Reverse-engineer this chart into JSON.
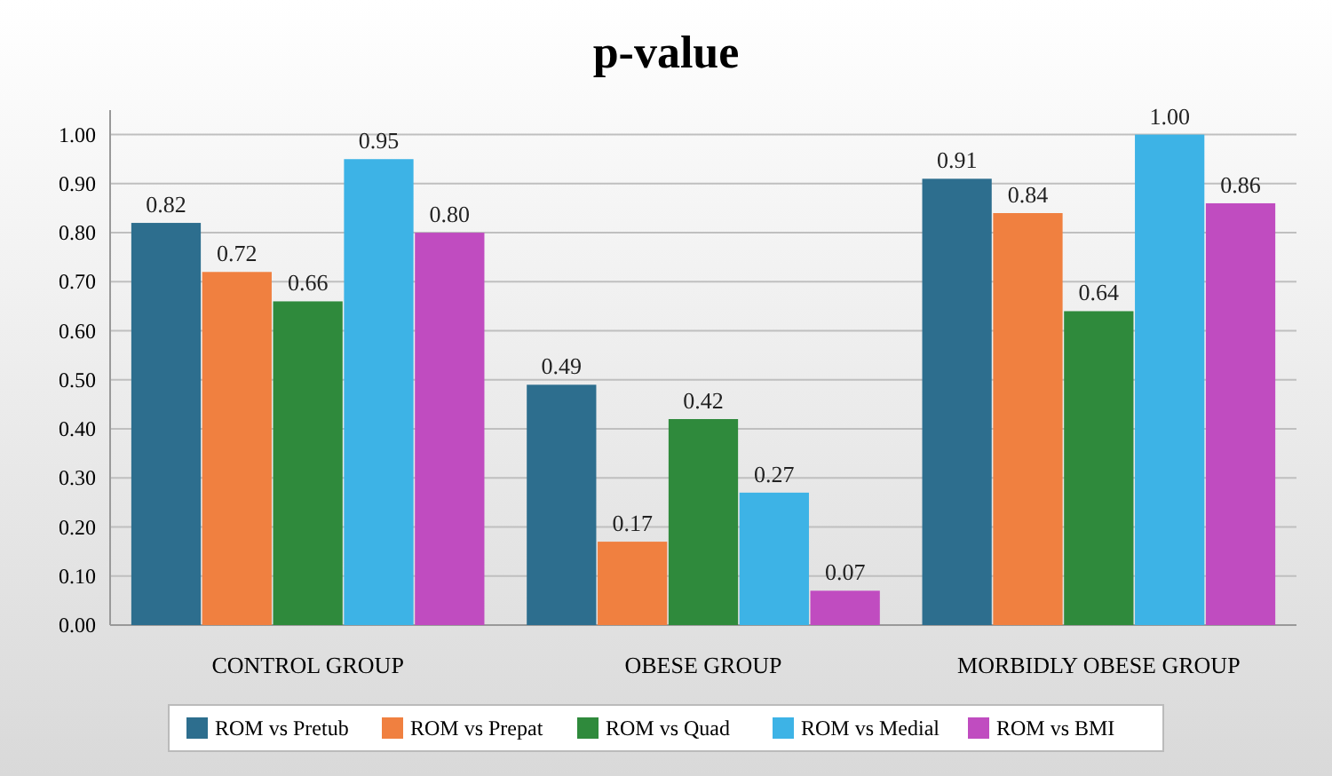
{
  "chart_data": {
    "type": "bar",
    "title": "p-value",
    "categories": [
      "CONTROL GROUP",
      "OBESE GROUP",
      "MORBIDLY OBESE GROUP"
    ],
    "series": [
      {
        "name": "ROM vs Pretub",
        "color": "#2d6e8e",
        "values": [
          0.82,
          0.49,
          0.91
        ],
        "value_labels": [
          "0.82",
          "0.49",
          "0.91"
        ]
      },
      {
        "name": "ROM vs Prepat",
        "color": "#f08040",
        "values": [
          0.72,
          0.17,
          0.84
        ],
        "value_labels": [
          "0.72",
          "0.17",
          "0.84"
        ]
      },
      {
        "name": "ROM vs Quad",
        "color": "#2f8a3c",
        "values": [
          0.66,
          0.42,
          0.64
        ],
        "value_labels": [
          "0.66",
          "0.42",
          "0.64"
        ]
      },
      {
        "name": "ROM vs Medial",
        "color": "#3db3e6",
        "values": [
          0.95,
          0.27,
          1.0
        ],
        "value_labels": [
          "0.95",
          "0.27",
          "1.00"
        ]
      },
      {
        "name": "ROM vs BMI",
        "color": "#c04cc0",
        "values": [
          0.8,
          0.07,
          0.86
        ],
        "value_labels": [
          "0.80",
          "0.07",
          "0.86"
        ]
      }
    ],
    "ylim": [
      0,
      1.05
    ],
    "yticks": [
      {
        "value": 0,
        "label": "0.00"
      },
      {
        "value": 0.1,
        "label": "0.10"
      },
      {
        "value": 0.2,
        "label": "0.20"
      },
      {
        "value": 0.3,
        "label": "0.30"
      },
      {
        "value": 0.4,
        "label": "0.40"
      },
      {
        "value": 0.5,
        "label": "0.50"
      },
      {
        "value": 0.6,
        "label": "0.60"
      },
      {
        "value": 0.7,
        "label": "0.70"
      },
      {
        "value": 0.8,
        "label": "0.80"
      },
      {
        "value": 0.9,
        "label": "0.90"
      },
      {
        "value": 1,
        "label": "1.00"
      }
    ],
    "grid": "y",
    "legend": "bottom"
  }
}
